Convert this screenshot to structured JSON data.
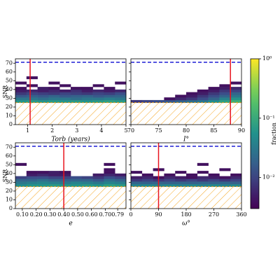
{
  "chart_data": {
    "type": "heatmap",
    "ylabel": "SNR",
    "ylim": [
      0,
      75
    ],
    "yticks": [
      0,
      10,
      20,
      30,
      40,
      50,
      60,
      70
    ],
    "y_bins": [
      25,
      28,
      31,
      34,
      37,
      40,
      43,
      46,
      49,
      52,
      55,
      58
    ],
    "snr_limit": 71,
    "threshold": 25,
    "colorbar": {
      "label": "fraction",
      "log": true,
      "clim": [
        0.003,
        1
      ],
      "ticks": [
        {
          "value": 1,
          "label": "10⁰"
        },
        {
          "value": 0.1,
          "label": "10⁻¹"
        },
        {
          "value": 0.01,
          "label": "10⁻²"
        }
      ]
    },
    "panels": [
      {
        "xlabel": "Torb (years)",
        "xlim": [
          0.5,
          5
        ],
        "xticks": [
          1,
          2,
          3,
          4,
          5
        ],
        "truth": 1.1,
        "x_bins": [
          0.5,
          0.95,
          1.4,
          1.85,
          2.3,
          2.75,
          3.2,
          3.65,
          4.1,
          4.55,
          5.0
        ],
        "z": [
          [
            0.06,
            0.07,
            0.06,
            0.07,
            0.06,
            0.07,
            0.06,
            0.07,
            0.08,
            0.07
          ],
          [
            0.03,
            0.03,
            0.025,
            0.03,
            0.03,
            0.025,
            0.03,
            0.03,
            0.035,
            0.03
          ],
          [
            0.015,
            0.018,
            0.015,
            0.02,
            0.015,
            0.018,
            0.02,
            0.015,
            0.018,
            0.02
          ],
          [
            0.008,
            0.01,
            0.009,
            0.008,
            0.01,
            0.009,
            0.008,
            0.01,
            0.009,
            0.012
          ],
          [
            0.005,
            0.006,
            0.005,
            0.006,
            0.005,
            0.007,
            0.005,
            0.006,
            0.005,
            0.006
          ],
          [
            0.004,
            null,
            0.005,
            0.004,
            null,
            0.004,
            0.004,
            null,
            0.004,
            null
          ],
          [
            null,
            0.004,
            null,
            null,
            0.004,
            null,
            null,
            0.004,
            null,
            null
          ],
          [
            0.004,
            null,
            null,
            0.004,
            null,
            null,
            null,
            null,
            null,
            0.004
          ],
          [
            null,
            null,
            null,
            null,
            null,
            null,
            null,
            null,
            null,
            null
          ],
          [
            null,
            0.004,
            null,
            null,
            null,
            null,
            null,
            null,
            null,
            null
          ],
          [
            null,
            null,
            null,
            null,
            null,
            null,
            null,
            null,
            null,
            null
          ]
        ]
      },
      {
        "xlabel": "I°",
        "xlim": [
          70,
          90
        ],
        "xticks": [
          70,
          75,
          80,
          85,
          90
        ],
        "truth": 88,
        "x_bins": [
          70,
          72,
          74,
          76,
          78,
          80,
          82,
          84,
          86,
          88,
          90
        ],
        "z": [
          [
            0.008,
            0.01,
            0.012,
            0.015,
            0.02,
            0.025,
            0.03,
            0.05,
            0.08,
            0.12
          ],
          [
            null,
            null,
            null,
            0.004,
            0.006,
            0.008,
            0.012,
            0.02,
            0.04,
            0.06
          ],
          [
            null,
            null,
            null,
            null,
            0.004,
            0.005,
            0.008,
            0.012,
            0.02,
            0.03
          ],
          [
            null,
            null,
            null,
            null,
            null,
            0.004,
            0.005,
            0.008,
            0.012,
            0.02
          ],
          [
            null,
            null,
            null,
            null,
            null,
            null,
            0.004,
            0.005,
            0.008,
            0.01
          ],
          [
            null,
            null,
            null,
            null,
            null,
            null,
            null,
            0.004,
            0.005,
            0.006
          ],
          [
            null,
            null,
            null,
            null,
            null,
            null,
            null,
            null,
            0.004,
            null
          ],
          [
            null,
            null,
            null,
            null,
            null,
            null,
            null,
            null,
            null,
            0.004
          ],
          [
            null,
            null,
            null,
            null,
            null,
            null,
            null,
            null,
            null,
            null
          ],
          [
            null,
            null,
            null,
            null,
            null,
            null,
            null,
            null,
            null,
            null
          ],
          [
            null,
            null,
            null,
            null,
            null,
            null,
            null,
            null,
            null,
            null
          ]
        ]
      },
      {
        "xlabel": "e",
        "xlim": [
          0.05,
          0.85
        ],
        "xticks": [
          {
            "value": 0.1,
            "label": "0.10"
          },
          {
            "value": 0.2,
            "label": "0.20"
          },
          {
            "value": 0.3,
            "label": "0.30"
          },
          {
            "value": 0.4,
            "label": "0.40"
          },
          {
            "value": 0.5,
            "label": "0.50"
          },
          {
            "value": 0.6,
            "label": "0.60"
          },
          {
            "value": 0.7,
            "label": "0.70"
          },
          0.79
        ],
        "truth": 0.4,
        "x_bins": [
          0.05,
          0.13,
          0.21,
          0.29,
          0.37,
          0.45,
          0.53,
          0.61,
          0.69,
          0.77,
          0.85
        ],
        "z": [
          [
            0.05,
            0.06,
            0.06,
            0.07,
            0.06,
            0.06,
            0.07,
            0.06,
            0.08,
            0.07
          ],
          [
            0.03,
            0.035,
            0.04,
            0.035,
            0.03,
            0.04,
            0.035,
            0.03,
            0.04,
            0.035
          ],
          [
            0.02,
            0.02,
            0.025,
            0.02,
            0.018,
            0.02,
            0.02,
            0.015,
            0.025,
            0.02
          ],
          [
            0.01,
            0.012,
            0.012,
            0.01,
            0.01,
            0.012,
            0.01,
            0.008,
            0.012,
            0.01
          ],
          [
            null,
            0.005,
            0.006,
            0.005,
            0.005,
            null,
            null,
            0.005,
            0.006,
            0.005
          ],
          [
            null,
            0.004,
            0.004,
            0.005,
            0.004,
            null,
            null,
            null,
            0.004,
            null
          ],
          [
            null,
            null,
            null,
            null,
            null,
            null,
            null,
            null,
            0.004,
            null
          ],
          [
            null,
            null,
            null,
            null,
            null,
            null,
            null,
            null,
            null,
            null
          ],
          [
            0.004,
            null,
            null,
            null,
            null,
            null,
            null,
            null,
            0.004,
            null
          ],
          [
            null,
            null,
            null,
            null,
            null,
            null,
            null,
            null,
            null,
            null
          ],
          [
            null,
            null,
            null,
            null,
            null,
            null,
            null,
            null,
            null,
            null
          ]
        ]
      },
      {
        "xlabel": "ω°",
        "xlim": [
          0,
          360
        ],
        "xticks": [
          0,
          90,
          180,
          270,
          360
        ],
        "truth": 90,
        "x_bins": [
          0,
          36,
          72,
          108,
          144,
          180,
          216,
          252,
          288,
          324,
          360
        ],
        "z": [
          [
            0.04,
            0.045,
            0.04,
            0.045,
            0.04,
            0.045,
            0.04,
            0.045,
            0.04,
            0.045
          ],
          [
            0.02,
            0.018,
            0.02,
            0.018,
            0.02,
            0.018,
            0.02,
            0.018,
            0.02,
            0.018
          ],
          [
            0.008,
            0.01,
            0.008,
            0.01,
            0.008,
            0.01,
            0.008,
            0.01,
            0.008,
            0.01
          ],
          [
            0.005,
            0.006,
            0.004,
            0.006,
            0.005,
            0.004,
            0.006,
            0.005,
            0.004,
            0.006
          ],
          [
            null,
            0.004,
            null,
            0.004,
            null,
            0.004,
            null,
            0.004,
            null,
            0.004
          ],
          [
            0.004,
            null,
            null,
            null,
            0.004,
            null,
            0.004,
            null,
            null,
            null
          ],
          [
            null,
            null,
            0.004,
            null,
            null,
            null,
            null,
            null,
            0.004,
            null
          ],
          [
            null,
            null,
            null,
            null,
            null,
            null,
            null,
            null,
            null,
            null
          ],
          [
            null,
            null,
            null,
            null,
            null,
            null,
            0.004,
            null,
            null,
            null
          ],
          [
            null,
            null,
            null,
            null,
            null,
            null,
            null,
            null,
            null,
            null
          ],
          [
            null,
            null,
            null,
            null,
            null,
            null,
            null,
            null,
            null,
            null
          ]
        ]
      }
    ]
  }
}
